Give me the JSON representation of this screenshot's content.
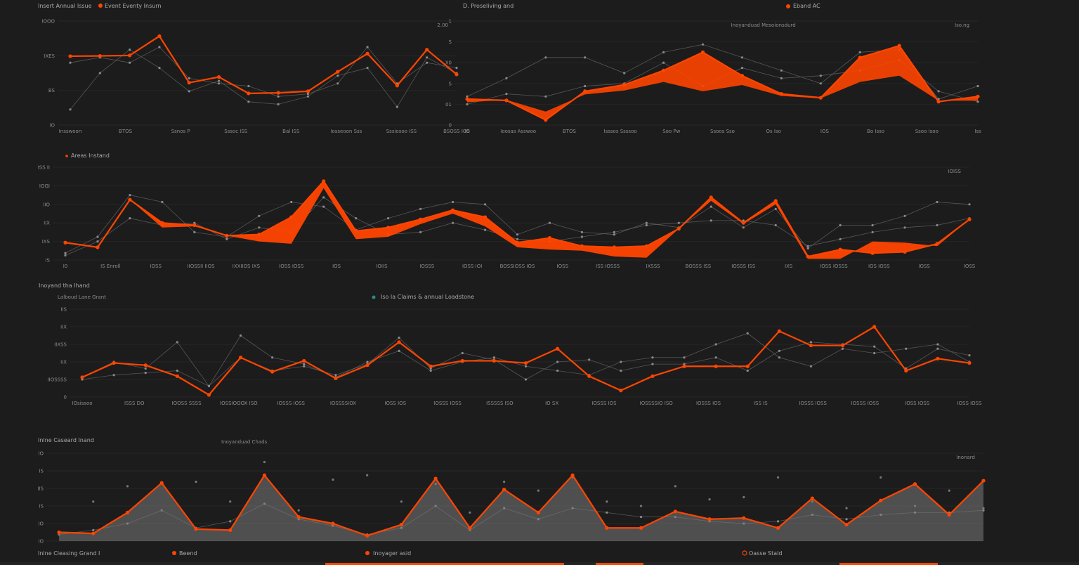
{
  "header": {
    "left_title": "Insert Annual Issue",
    "left_legend": "Event Eventy Insurn",
    "center_title": "D. Proseliving and",
    "right_legend": "Eband AC",
    "accent_color": "#ff4500"
  },
  "sections": {
    "legend_p2": "Areas Instand",
    "title_p3": "Inoyand tha Ihand",
    "sublabel_p3": "Lalboud Lane Grant",
    "legend_p3": "Iso la Claims & annual Loadstone",
    "title_p4": "Inlne Caseard Inand",
    "center_p4": "Inoyanduad Chads",
    "footer_title": "Inlne Cleasing Grand I",
    "footer_legend_1": "Beend",
    "footer_legend_2": "Inoyager asid",
    "footer_legend_3": "Oasse Stald"
  },
  "chart_data": [
    {
      "type": "line",
      "name": "Insert Annual Issue",
      "ylim": [
        0,
        4
      ],
      "y_ticks": [
        "IO",
        "BS",
        "IXES",
        "IOOO"
      ],
      "x_ticks": [
        "Insswoon",
        "BTOS",
        "Ssnos P",
        "Sssoc ISS",
        "Bal ISS",
        "Iosseoon Sss",
        "Sssiosoo ISS",
        "BSOSS IOS"
      ],
      "corner": "2.00",
      "primary": [
        2.65,
        2.66,
        2.68,
        3.42,
        1.63,
        1.85,
        1.22,
        1.24,
        1.3,
        2.05,
        2.75,
        1.52,
        2.9,
        1.95
      ],
      "secondary": [
        [
          0.6,
          2.0,
          2.9,
          2.2,
          1.3,
          1.7,
          0.9,
          0.8,
          1.1,
          1.9,
          2.2,
          0.7,
          2.6,
          2.0
        ],
        [
          2.4,
          2.6,
          2.4,
          3.0,
          1.8,
          1.6,
          1.5,
          1.1,
          1.2,
          1.6,
          3.0,
          1.6,
          2.4,
          2.2
        ]
      ]
    },
    {
      "type": "area",
      "name": "D. Proseliving and",
      "ylim": [
        0,
        4
      ],
      "y_ticks": [
        "0",
        "01",
        "S",
        "X0",
        "S",
        "1"
      ],
      "x_ticks": [
        "IO",
        "Ioosas Asswoo",
        "BTOS",
        "Isssos Ssssoo",
        "Soo Pw",
        "Ssoos Sso",
        "Os Iso",
        "IOS",
        "Bo Isso",
        "Ssoo Isoo",
        "Iss"
      ],
      "top_label": "Inoyanduad Mesoionsdurd",
      "corner": "Iso.ng",
      "primary": [
        1.0,
        0.95,
        0.2,
        1.3,
        1.55,
        2.1,
        2.8,
        1.9,
        1.2,
        1.05,
        2.6,
        3.05,
        0.9,
        1.1
      ],
      "secondary": [
        [
          1.1,
          1.8,
          2.6,
          2.6,
          2.0,
          2.8,
          3.1,
          2.6,
          2.1,
          1.6,
          2.8,
          2.9,
          1.0,
          1.5
        ],
        [
          0.8,
          1.2,
          1.1,
          1.5,
          1.6,
          2.4,
          1.5,
          2.2,
          1.8,
          1.9,
          2.1,
          2.5,
          1.3,
          0.9
        ]
      ]
    },
    {
      "type": "area",
      "name": "Areas Instand",
      "ylim": [
        0,
        4
      ],
      "y_ticks": [
        "IS",
        "IXS",
        "IIX",
        "IIO",
        "IOGI",
        "ISS II"
      ],
      "x_ticks": [
        "I0",
        "IS Enroll",
        "IOSS",
        "IIOSSII IIOS",
        "IXXIIOS IXS",
        "IOSS IOSS",
        "IOS",
        "IOIIS",
        "IOSSS",
        "IOSS IOI",
        "BOSSIOSS IOS",
        "IOSS",
        "ISS IOSSS",
        "IXSSS",
        "BOSSS ISS",
        "IOSSS ISS",
        "IXS",
        "IOSS IOSSS",
        "IOS IOSS",
        "IOSS",
        "IOSS"
      ],
      "corner": "IOISS",
      "primary": [
        0.75,
        0.55,
        2.6,
        1.6,
        1.5,
        1.05,
        1.1,
        1.85,
        3.4,
        1.25,
        1.4,
        1.75,
        2.15,
        1.85,
        0.75,
        0.95,
        0.6,
        0.55,
        0.6,
        1.35,
        2.7,
        1.6,
        2.55,
        0.15,
        0.45,
        0.3,
        0.35,
        0.7,
        1.75
      ],
      "primary_low": [
        0.75,
        0.55,
        2.6,
        1.4,
        1.45,
        1.05,
        0.8,
        0.7,
        3.1,
        0.9,
        1.0,
        1.55,
        2.0,
        1.45,
        0.55,
        0.45,
        0.4,
        0.15,
        0.1,
        1.35,
        2.55,
        1.55,
        2.4,
        0.05,
        0.05,
        0.8,
        0.75,
        0.6,
        1.75
      ],
      "secondary": [
        [
          0.3,
          1.0,
          2.8,
          2.5,
          1.2,
          1.0,
          1.9,
          2.5,
          2.3,
          1.3,
          1.8,
          2.2,
          2.5,
          2.4,
          1.1,
          1.6,
          1.2,
          1.1,
          1.6,
          1.4,
          2.3,
          1.4,
          2.2,
          0.5,
          1.5,
          1.5,
          1.9,
          2.5,
          2.4
        ],
        [
          0.2,
          0.8,
          1.8,
          1.5,
          1.6,
          0.9,
          1.4,
          1.2,
          2.7,
          1.8,
          1.1,
          1.2,
          1.6,
          1.3,
          0.9,
          0.8,
          1.0,
          1.2,
          1.5,
          1.6,
          1.7,
          1.7,
          1.5,
          0.6,
          0.9,
          1.2,
          1.4,
          1.5,
          1.8
        ]
      ]
    },
    {
      "type": "line",
      "name": "Inoyand tha Ihand",
      "ylim": [
        0,
        4
      ],
      "y_ticks": [
        "0",
        "IIOSSSS",
        "IIX",
        "IIXSS",
        "IIX",
        "IIS"
      ],
      "x_ticks": [
        "IOsissoo",
        "ISSS DO",
        "IOOSS SSSS",
        "IOSSIOOOX ISO",
        "IOSSS IOSS",
        "IOSSSSIOX",
        "IOSS IOS",
        "IOSSS IOSS",
        "ISSSSS ISO",
        "IO SX",
        "IOSSS IOS",
        "IOSSSSIO ISO",
        "IOSSS IOS",
        "ISS IS",
        "IOSSS IOSS",
        "IOSSS IOSS",
        "IOSS IOSS",
        "IOSS IOSS"
      ],
      "corner": "",
      "primary": [
        0.9,
        1.55,
        1.45,
        0.95,
        0.1,
        1.8,
        1.15,
        1.65,
        0.85,
        1.45,
        2.5,
        1.4,
        1.65,
        1.65,
        1.55,
        2.2,
        0.95,
        0.3,
        0.95,
        1.4,
        1.4,
        1.4,
        3.0,
        2.35,
        2.35,
        3.2,
        1.2,
        1.75,
        1.55
      ],
      "secondary": [
        [
          0.9,
          1.6,
          1.3,
          2.5,
          0.5,
          1.8,
          1.2,
          1.4,
          1.0,
          1.5,
          2.7,
          1.3,
          2.0,
          1.7,
          0.8,
          1.6,
          1.7,
          1.2,
          1.5,
          1.5,
          1.8,
          1.2,
          2.1,
          2.5,
          2.4,
          2.3,
          1.3,
          2.2,
          1.9
        ],
        [
          0.8,
          1.0,
          1.1,
          1.2,
          0.5,
          2.8,
          1.8,
          1.5,
          0.9,
          1.6,
          2.1,
          1.2,
          1.6,
          1.8,
          1.4,
          1.2,
          1.0,
          1.6,
          1.8,
          1.8,
          2.4,
          2.9,
          1.8,
          1.4,
          2.2,
          2.0,
          2.2,
          2.4,
          1.6
        ]
      ]
    },
    {
      "type": "area",
      "name": "Inlne Caseard Inand",
      "ylim": [
        0,
        4
      ],
      "y_ticks": [
        "IO",
        "IO",
        "IS",
        "IIS",
        "IS",
        "IO"
      ],
      "x_ticks": [],
      "corner": "Inonard",
      "primary": [
        0.4,
        0.35,
        1.3,
        2.65,
        0.55,
        0.5,
        3.0,
        1.1,
        0.8,
        0.25,
        0.75,
        2.85,
        0.6,
        2.35,
        1.3,
        3.0,
        0.6,
        0.6,
        1.35,
        1.0,
        1.05,
        0.6,
        1.95,
        0.75,
        1.85,
        2.6,
        1.2,
        2.75
      ],
      "secondary": [
        [
          0.3,
          0.5,
          0.8,
          1.4,
          0.6,
          0.9,
          1.7,
          1.0,
          0.7,
          0.3,
          0.6,
          1.6,
          0.5,
          1.5,
          1.0,
          1.5,
          1.3,
          1.1,
          1.1,
          0.9,
          0.8,
          0.9,
          1.2,
          1.0,
          1.2,
          1.3,
          1.3,
          1.4
        ]
      ],
      "dots": [
        [
          0.3,
          1.8,
          2.5,
          1.4,
          2.7,
          1.8,
          3.6,
          1.4,
          2.8,
          3.0,
          1.8,
          2.6,
          1.3,
          2.7,
          2.3,
          2.9,
          1.8,
          1.6,
          2.5,
          1.9,
          2.0,
          2.9,
          1.8,
          1.5,
          2.9,
          1.6,
          2.3,
          1.5
        ]
      ]
    }
  ]
}
